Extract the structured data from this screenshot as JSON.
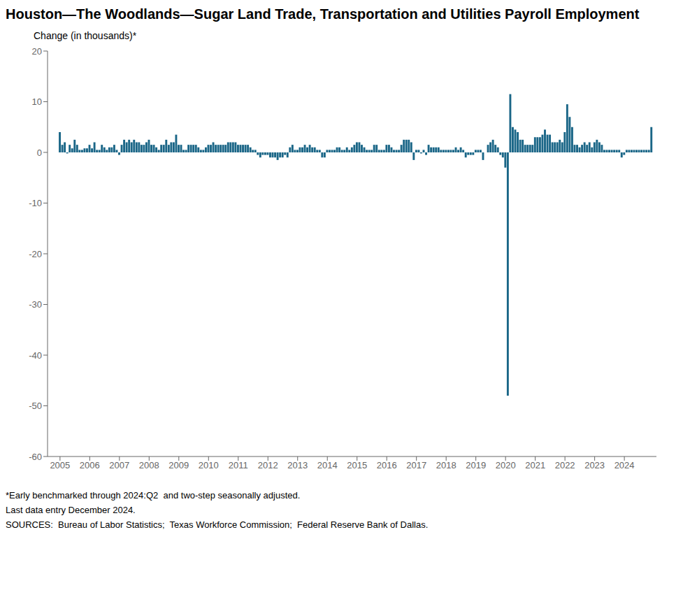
{
  "chart_data": {
    "type": "bar",
    "title": "Houston—The Woodlands—Sugar Land Trade, Transportation and Utilities Payroll Employment",
    "ylabel": "Change (in thousands)*",
    "annotations": [
      "*Early benchmarked through 2024:Q2  and two-step seasonally adjusted.",
      "Last data entry December 2024.",
      "SOURCES:  Bureau of Labor Statistics;  Texas Workforce Commission;  Federal Reserve Bank of Dallas."
    ],
    "color": "#1a6687",
    "grid": false,
    "xlim": [
      2004.58,
      2025.08
    ],
    "xticks": [
      2005,
      2006,
      2007,
      2008,
      2009,
      2010,
      2011,
      2012,
      2013,
      2014,
      2015,
      2016,
      2017,
      2018,
      2019,
      2020,
      2021,
      2022,
      2023,
      2024
    ],
    "ylim": [
      -60,
      20
    ],
    "yticks": [
      -60,
      -50,
      -40,
      -30,
      -20,
      -10,
      0,
      10,
      20
    ],
    "x": [
      2005,
      2005.0833333333,
      2005.1666666667,
      2005.25,
      2005.3333333333,
      2005.4166666667,
      2005.5,
      2005.5833333333,
      2005.6666666667,
      2005.75,
      2005.8333333333,
      2005.9166666667,
      2006,
      2006.0833333333,
      2006.1666666667,
      2006.25,
      2006.3333333333,
      2006.4166666667,
      2006.5,
      2006.5833333333,
      2006.6666666667,
      2006.75,
      2006.8333333333,
      2006.9166666667,
      2007,
      2007.0833333333,
      2007.1666666667,
      2007.25,
      2007.3333333333,
      2007.4166666667,
      2007.5,
      2007.5833333333,
      2007.6666666667,
      2007.75,
      2007.8333333333,
      2007.9166666667,
      2008,
      2008.0833333333,
      2008.1666666667,
      2008.25,
      2008.3333333333,
      2008.4166666667,
      2008.5,
      2008.5833333333,
      2008.6666666667,
      2008.75,
      2008.8333333333,
      2008.9166666667,
      2009,
      2009.0833333333,
      2009.1666666667,
      2009.25,
      2009.3333333333,
      2009.4166666667,
      2009.5,
      2009.5833333333,
      2009.6666666667,
      2009.75,
      2009.8333333333,
      2009.9166666667,
      2010,
      2010.0833333333,
      2010.1666666667,
      2010.25,
      2010.3333333333,
      2010.4166666667,
      2010.5,
      2010.5833333333,
      2010.6666666667,
      2010.75,
      2010.8333333333,
      2010.9166666667,
      2011,
      2011.0833333333,
      2011.1666666667,
      2011.25,
      2011.3333333333,
      2011.4166666667,
      2011.5,
      2011.5833333333,
      2011.6666666667,
      2011.75,
      2011.8333333333,
      2011.9166666667,
      2012,
      2012.0833333333,
      2012.1666666667,
      2012.25,
      2012.3333333333,
      2012.4166666667,
      2012.5,
      2012.5833333333,
      2012.6666666667,
      2012.75,
      2012.8333333333,
      2012.9166666667,
      2013,
      2013.0833333333,
      2013.1666666667,
      2013.25,
      2013.3333333333,
      2013.4166666667,
      2013.5,
      2013.5833333333,
      2013.6666666667,
      2013.75,
      2013.8333333333,
      2013.9166666667,
      2014,
      2014.0833333333,
      2014.1666666667,
      2014.25,
      2014.3333333333,
      2014.4166666667,
      2014.5,
      2014.5833333333,
      2014.6666666667,
      2014.75,
      2014.8333333333,
      2014.9166666667,
      2015,
      2015.0833333333,
      2015.1666666667,
      2015.25,
      2015.3333333333,
      2015.4166666667,
      2015.5,
      2015.5833333333,
      2015.6666666667,
      2015.75,
      2015.8333333333,
      2015.9166666667,
      2016,
      2016.0833333333,
      2016.1666666667,
      2016.25,
      2016.3333333333,
      2016.4166666667,
      2016.5,
      2016.5833333333,
      2016.6666666667,
      2016.75,
      2016.8333333333,
      2016.9166666667,
      2017,
      2017.0833333333,
      2017.1666666667,
      2017.25,
      2017.3333333333,
      2017.4166666667,
      2017.5,
      2017.5833333333,
      2017.6666666667,
      2017.75,
      2017.8333333333,
      2017.9166666667,
      2018,
      2018.0833333333,
      2018.1666666667,
      2018.25,
      2018.3333333333,
      2018.4166666667,
      2018.5,
      2018.5833333333,
      2018.6666666667,
      2018.75,
      2018.8333333333,
      2018.9166666667,
      2019,
      2019.0833333333,
      2019.1666666667,
      2019.25,
      2019.3333333333,
      2019.4166666667,
      2019.5,
      2019.5833333333,
      2019.6666666667,
      2019.75,
      2019.8333333333,
      2019.9166666667,
      2020,
      2020.0833333333,
      2020.1666666667,
      2020.25,
      2020.3333333333,
      2020.4166666667,
      2020.5,
      2020.5833333333,
      2020.6666666667,
      2020.75,
      2020.8333333333,
      2020.9166666667,
      2021,
      2021.0833333333,
      2021.1666666667,
      2021.25,
      2021.3333333333,
      2021.4166666667,
      2021.5,
      2021.5833333333,
      2021.6666666667,
      2021.75,
      2021.8333333333,
      2021.9166666667,
      2022,
      2022.0833333333,
      2022.1666666667,
      2022.25,
      2022.3333333333,
      2022.4166666667,
      2022.5,
      2022.5833333333,
      2022.6666666667,
      2022.75,
      2022.8333333333,
      2022.9166666667,
      2023,
      2023.0833333333,
      2023.1666666667,
      2023.25,
      2023.3333333333,
      2023.4166666667,
      2023.5,
      2023.5833333333,
      2023.6666666667,
      2023.75,
      2023.8333333333,
      2023.9166666667,
      2024,
      2024.0833333333,
      2024.1666666667,
      2024.25,
      2024.3333333333,
      2024.4166666667,
      2024.5,
      2024.5833333333,
      2024.6666666667,
      2024.75,
      2024.8333333333,
      2024.9166666667
    ],
    "values": [
      4.0,
      1.5,
      2.0,
      -0.2,
      1.5,
      0.8,
      2.5,
      1.5,
      0.5,
      0.5,
      0.8,
      0.8,
      1.5,
      0.8,
      2.0,
      0.5,
      0.5,
      1.5,
      1.0,
      0.5,
      1.0,
      1.0,
      1.5,
      0.5,
      -0.5,
      1.5,
      2.5,
      2.0,
      2.5,
      2.0,
      2.5,
      2.0,
      2.0,
      1.5,
      1.5,
      2.0,
      2.5,
      1.5,
      1.5,
      1.0,
      0.5,
      1.5,
      1.5,
      2.5,
      1.5,
      2.0,
      2.0,
      3.5,
      1.5,
      1.5,
      0.5,
      0.5,
      1.5,
      1.5,
      1.5,
      1.5,
      1.0,
      0.5,
      0.5,
      1.0,
      1.5,
      1.5,
      2.0,
      1.5,
      1.5,
      1.5,
      1.5,
      1.5,
      2.0,
      2.0,
      2.0,
      2.0,
      1.5,
      1.5,
      1.5,
      1.5,
      1.5,
      1.0,
      0.5,
      0.5,
      -0.5,
      -1.0,
      -0.5,
      -0.5,
      -0.5,
      -1.0,
      -1.0,
      -1.0,
      -1.5,
      -1.0,
      -1.0,
      -0.5,
      -1.0,
      1.0,
      1.5,
      0.5,
      0.5,
      1.0,
      1.0,
      1.5,
      1.0,
      1.5,
      1.0,
      1.0,
      0.5,
      0.5,
      -1.0,
      -1.0,
      0.5,
      0.5,
      0.5,
      0.5,
      1.0,
      1.0,
      0.5,
      0.5,
      1.0,
      0.5,
      1.0,
      1.5,
      2.0,
      2.0,
      1.5,
      1.0,
      0.5,
      0.5,
      0.5,
      1.5,
      1.5,
      0.5,
      0.5,
      0.5,
      1.5,
      1.5,
      1.0,
      0.5,
      0.5,
      0.5,
      1.5,
      2.5,
      2.5,
      2.5,
      2.0,
      -1.5,
      0.5,
      0.5,
      -0.2,
      0.5,
      -0.5,
      1.5,
      1.0,
      1.0,
      1.0,
      1.0,
      0.5,
      0.5,
      0.5,
      0.5,
      0.5,
      0.5,
      1.0,
      0.5,
      1.0,
      0.5,
      -1.0,
      -0.5,
      -0.5,
      -0.5,
      0.5,
      0.5,
      0.5,
      -1.5,
      0.0,
      1.5,
      2.0,
      2.5,
      1.5,
      1.0,
      -0.5,
      -1.0,
      -3.0,
      -48.0,
      11.5,
      5.0,
      4.5,
      4.0,
      2.5,
      2.5,
      1.5,
      1.5,
      1.5,
      1.5,
      3.0,
      3.0,
      3.0,
      3.5,
      4.5,
      3.5,
      3.5,
      2.0,
      2.0,
      2.0,
      2.5,
      2.0,
      4.0,
      9.5,
      7.0,
      5.0,
      1.5,
      1.5,
      1.0,
      1.5,
      2.0,
      1.5,
      2.0,
      1.0,
      2.0,
      2.5,
      2.0,
      1.5,
      0.5,
      0.5,
      0.5,
      0.5,
      0.5,
      0.5,
      0.5,
      -1.0,
      -0.5,
      0.5,
      0.5,
      0.5,
      0.5,
      0.5,
      0.5,
      0.5,
      0.5,
      0.5,
      0.5,
      5.0
    ]
  }
}
